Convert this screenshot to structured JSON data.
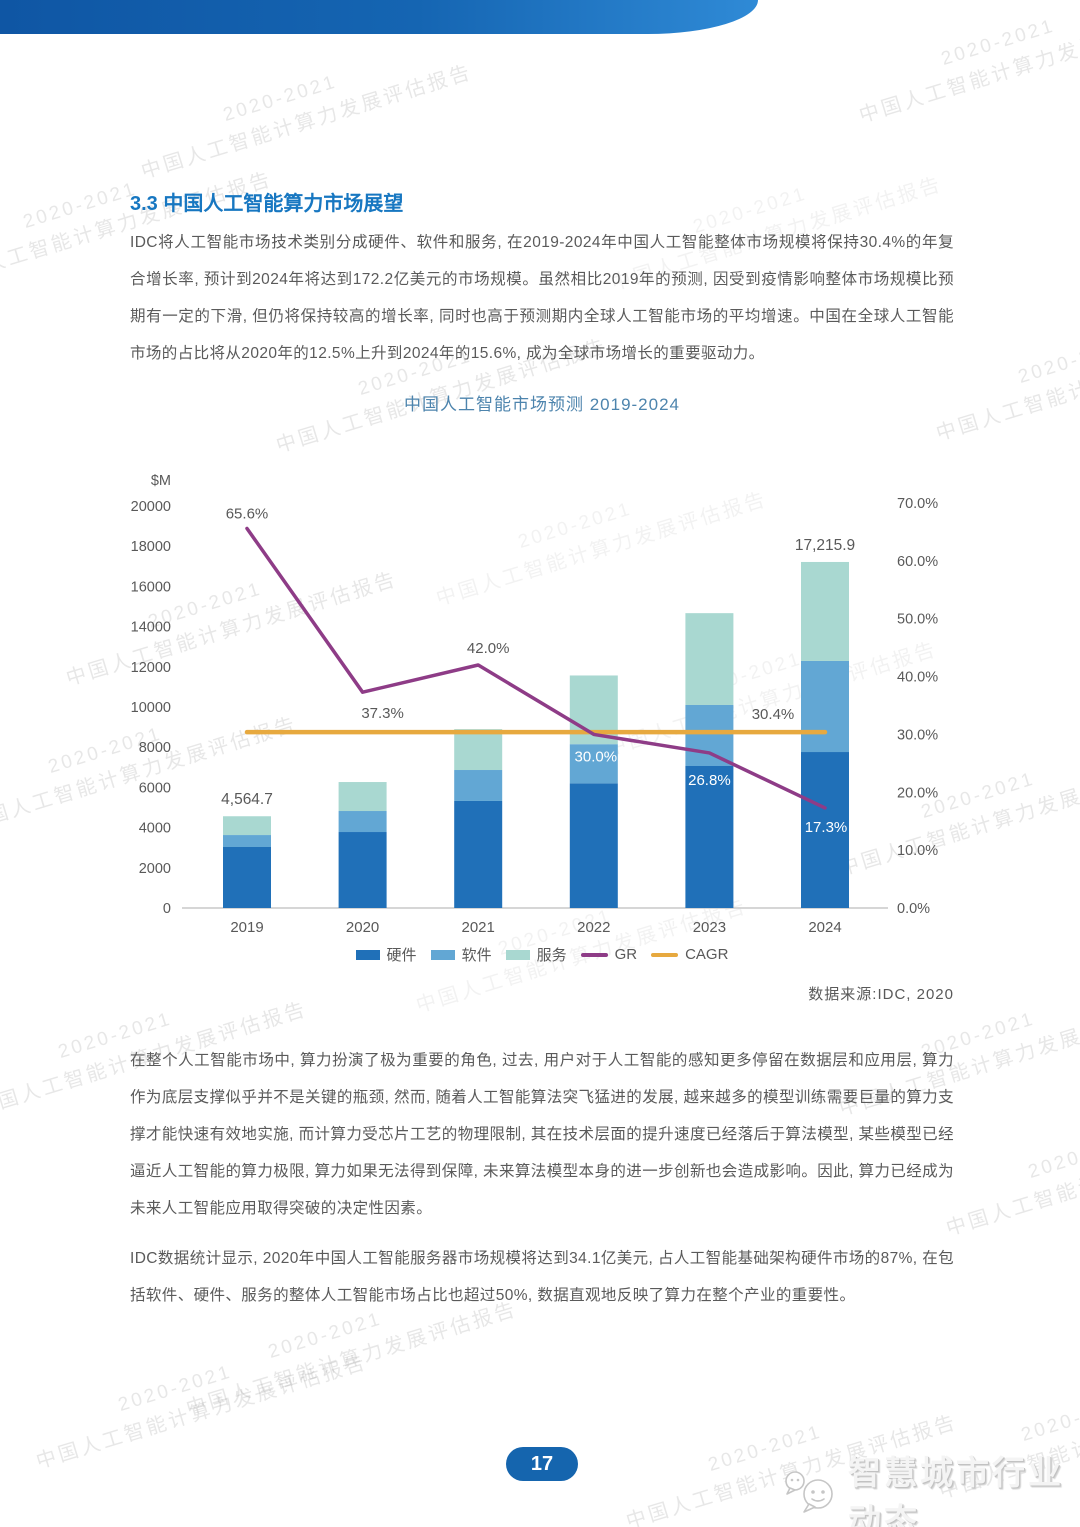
{
  "watermark": {
    "line1": "2020-2021",
    "line2": "中国人工智能计算力发展评估报告"
  },
  "section": {
    "title": "3.3 中国人工智能算力市场展望"
  },
  "paragraphs": {
    "p1": "IDC将人工智能市场技术类别分成硬件、软件和服务, 在2019-2024年中国人工智能整体市场规模将保持30.4%的年复合增长率, 预计到2024年将达到172.2亿美元的市场规模。虽然相比2019年的预测, 因受到疫情影响整体市场规模比预期有一定的下滑, 但仍将保持较高的增长率, 同时也高于预测期内全球人工智能市场的平均增速。中国在全球人工智能市场的占比将从2020年的12.5%上升到2024年的15.6%, 成为全球市场增长的重要驱动力。",
    "p2": "在整个人工智能市场中, 算力扮演了极为重要的角色, 过去, 用户对于人工智能的感知更多停留在数据层和应用层, 算力作为底层支撑似乎并不是关键的瓶颈, 然而, 随着人工智能算法突飞猛进的发展, 越来越多的模型训练需要巨量的算力支撑才能快速有效地实施, 而计算力受芯片工艺的物理限制, 其在技术层面的提升速度已经落后于算法模型, 某些模型已经逼近人工智能的算力极限, 算力如果无法得到保障, 未来算法模型本身的进一步创新也会造成影响。因此, 算力已经成为未来人工智能应用取得突破的决定性因素。",
    "p3": "IDC数据统计显示, 2020年中国人工智能服务器市场规模将达到34.1亿美元, 占人工智能基础架构硬件市场的87%, 在包括软件、硬件、服务的整体人工智能市场占比也超过50%, 数据直观地反映了算力在整个产业的重要性。"
  },
  "chart_data": {
    "type": "bar",
    "subtype": "stacked-bars-with-lines",
    "title": "中国人工智能市场预测 2019-2024",
    "categories": [
      "2019",
      "2020",
      "2021",
      "2022",
      "2023",
      "2024"
    ],
    "series": [
      {
        "name": "硬件",
        "type": "bar",
        "color": "#2070b8",
        "values": [
          3035,
          3780,
          5325,
          6200,
          7065,
          7760
        ]
      },
      {
        "name": "软件",
        "type": "bar",
        "color": "#62a7d4",
        "values": [
          595,
          1045,
          1540,
          1950,
          3035,
          4530
        ]
      },
      {
        "name": "服务",
        "type": "bar",
        "color": "#a9d8d1",
        "values": [
          934.7,
          1441.8,
          2033.8,
          3418.5,
          4568.8,
          4925.9
        ]
      },
      {
        "name": "GR",
        "type": "line",
        "axis": "right",
        "color": "#8e3c87",
        "values": [
          65.6,
          37.3,
          42.0,
          30.0,
          26.8,
          17.3
        ]
      },
      {
        "name": "CAGR",
        "type": "hline",
        "axis": "right",
        "color": "#e7a93f",
        "value": 30.4
      }
    ],
    "totals": [
      4564.7,
      6266.8,
      8898.8,
      11568.5,
      14668.8,
      17215.9
    ],
    "total_labels": [
      {
        "index": 0,
        "text": "4,564.7"
      },
      {
        "index": 5,
        "text": "17,215.9"
      }
    ],
    "gr_labels": [
      "65.6%",
      "37.3%",
      "42.0%",
      "30.0%",
      "26.8%",
      "17.3%"
    ],
    "cagr_label": "30.4%",
    "left_axis": {
      "label": "$M",
      "min": 0,
      "max": 20000,
      "step": 2000
    },
    "right_axis": {
      "min": 0,
      "max": 70,
      "step": 10,
      "suffix": ".0%"
    },
    "legend": [
      "硬件",
      "软件",
      "服务",
      "GR",
      "CAGR"
    ],
    "legend_position": "bottom",
    "grid": false,
    "source": "数据来源:IDC, 2020"
  },
  "footer": {
    "page_number": "17",
    "brand": "智慧城市行业动态"
  }
}
